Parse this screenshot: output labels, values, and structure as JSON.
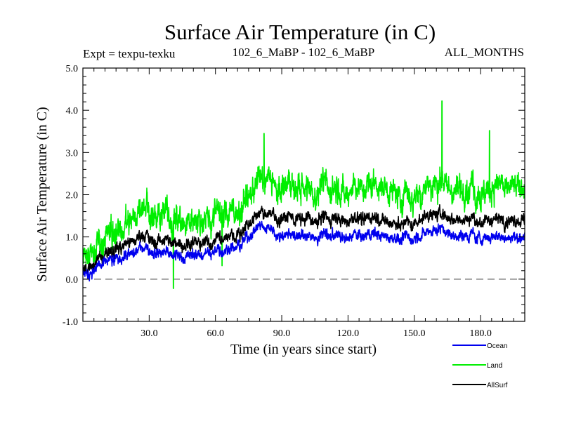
{
  "chart_data": {
    "type": "line",
    "title": "Surface Air Temperature (in C)",
    "subtitle_left": "Expt = texpu-texku",
    "subtitle_center": "102_6_MaBP - 102_6_MaBP",
    "subtitle_right": "ALL_MONTHS",
    "xlabel": "Time (in years since start)",
    "ylabel": "Surface Air Temperature (in C)",
    "xlim": [
      0,
      200
    ],
    "ylim": [
      -1.0,
      5.0
    ],
    "x_ticks": [
      30,
      60,
      90,
      120,
      150,
      180
    ],
    "x_tick_labels": [
      "30.0",
      "60.0",
      "90.0",
      "120.0",
      "150.0",
      "180.0"
    ],
    "y_ticks": [
      -1,
      0,
      1,
      2,
      3,
      4,
      5
    ],
    "y_tick_labels": [
      "-1.0",
      "0.0",
      "1.0",
      "2.0",
      "3.0",
      "4.0",
      "5.0"
    ],
    "reference_line": {
      "y": 0.0,
      "style": "dashed",
      "color": "#808080"
    },
    "legend_position": "bottom-right",
    "series": [
      {
        "name": "Land",
        "color": "#00ee00",
        "trend_x": [
          0,
          3,
          6,
          10,
          15,
          20,
          30,
          40,
          50,
          60,
          65,
          70,
          80,
          90,
          100,
          110,
          120,
          130,
          140,
          150,
          155,
          160,
          170,
          180,
          190,
          200
        ],
        "trend_y": [
          0.5,
          0.5,
          0.7,
          1.0,
          1.3,
          1.4,
          1.5,
          1.5,
          1.5,
          1.5,
          1.6,
          1.9,
          2.2,
          2.2,
          2.1,
          2.2,
          2.1,
          2.2,
          2.0,
          2.0,
          2.2,
          2.3,
          2.2,
          2.3,
          2.1,
          2.2
        ],
        "noise_amplitude": 0.38,
        "spikes": [
          {
            "x": 41,
            "y": -0.22
          },
          {
            "x": 63,
            "y": 0.32
          },
          {
            "x": 162.5,
            "y": 4.22
          },
          {
            "x": 82,
            "y": 3.45
          },
          {
            "x": 184,
            "y": 3.52
          }
        ]
      },
      {
        "name": "AllSurf",
        "color": "#000000",
        "trend_x": [
          0,
          3,
          6,
          10,
          15,
          20,
          30,
          40,
          50,
          60,
          65,
          70,
          80,
          90,
          100,
          110,
          120,
          130,
          140,
          150,
          155,
          160,
          170,
          180,
          190,
          200
        ],
        "trend_y": [
          0.2,
          0.2,
          0.4,
          0.6,
          0.8,
          0.9,
          0.9,
          0.9,
          0.9,
          0.9,
          1.0,
          1.2,
          1.5,
          1.45,
          1.4,
          1.45,
          1.4,
          1.45,
          1.3,
          1.35,
          1.5,
          1.55,
          1.45,
          1.5,
          1.35,
          1.4
        ],
        "noise_amplitude": 0.17,
        "spikes": []
      },
      {
        "name": "Ocean",
        "color": "#0000ee",
        "trend_x": [
          0,
          3,
          6,
          10,
          15,
          20,
          30,
          40,
          50,
          60,
          65,
          70,
          80,
          90,
          100,
          110,
          120,
          130,
          140,
          150,
          155,
          160,
          170,
          180,
          190,
          200
        ],
        "trend_y": [
          0.1,
          0.1,
          0.25,
          0.4,
          0.55,
          0.6,
          0.65,
          0.6,
          0.6,
          0.65,
          0.7,
          0.9,
          1.2,
          1.05,
          1.0,
          1.05,
          1.0,
          1.05,
          0.95,
          1.0,
          1.1,
          1.2,
          1.05,
          1.1,
          0.95,
          1.0
        ],
        "noise_amplitude": 0.15,
        "spikes": []
      }
    ]
  },
  "legend": {
    "items": [
      {
        "label": "Ocean",
        "color": "#0000ee"
      },
      {
        "label": "Land",
        "color": "#00ee00"
      },
      {
        "label": "AllSurf",
        "color": "#000000"
      }
    ]
  }
}
